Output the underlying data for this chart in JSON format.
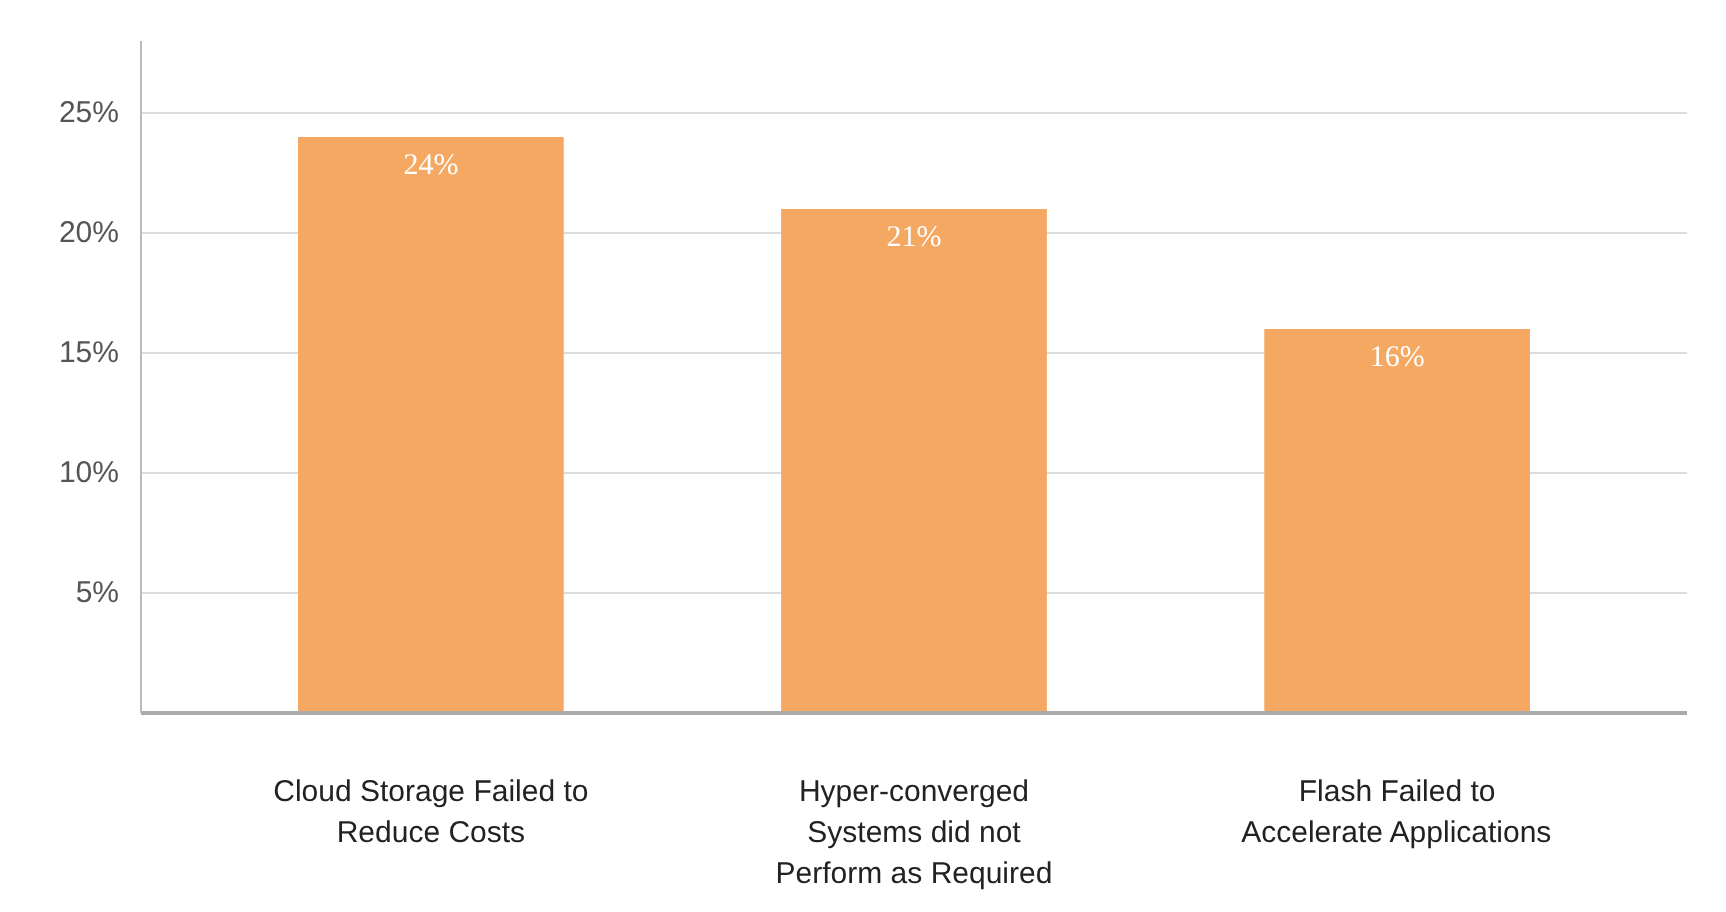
{
  "chart_data": {
    "type": "bar",
    "categories": [
      "Cloud Storage Failed to\nReduce Costs",
      "Hyper-converged\nSystems did not\nPerform as Required",
      "Flash Failed to\nAccelerate Applications"
    ],
    "values": [
      24,
      21,
      16
    ],
    "color": "#f4a862",
    "data_labels": true,
    "ylim": [
      0,
      28
    ],
    "yticks": [
      {
        "value": 5,
        "label": "5%"
      },
      {
        "value": 10,
        "label": "10%"
      },
      {
        "value": 15,
        "label": "15%"
      },
      {
        "value": 20,
        "label": "20%"
      },
      {
        "value": 25,
        "label": "25%"
      }
    ],
    "value_labels": [
      "24%",
      "21%",
      "16%"
    ],
    "grid": "y"
  }
}
